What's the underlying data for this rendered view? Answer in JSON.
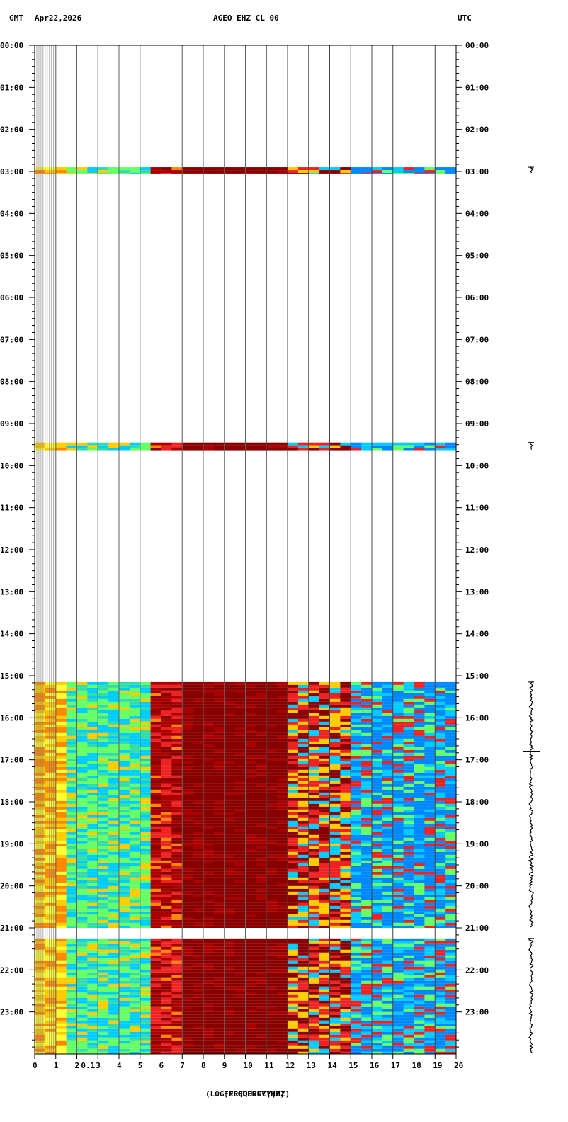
{
  "header": {
    "left_tz": "GMT",
    "date": "Apr22,2026",
    "station": "AGEO EHZ CL 00",
    "right_tz": "UTC"
  },
  "chart_data": {
    "type": "heatmap",
    "title": "AGEO EHZ CL 00",
    "xlabel": "(LOG)FREQUENCY(HZ)",
    "xlabel_overlap": "FREQUENCY(HZ)",
    "x_tick_labels": [
      "0",
      "1",
      "2",
      "0.1",
      "3",
      "4",
      "5",
      "6",
      "7",
      "8",
      "9",
      "10",
      "11",
      "12",
      "13",
      "14",
      "15",
      "16",
      "17",
      "18",
      "19",
      "20"
    ],
    "x_major_ticks": [
      0,
      1,
      2,
      3,
      4,
      5,
      6,
      7,
      8,
      9,
      10,
      11,
      12,
      13,
      14,
      15,
      16,
      17,
      18,
      19,
      20
    ],
    "x_log_gridlines": [
      0.1,
      0.2,
      0.3,
      0.4,
      0.5,
      0.6,
      0.7,
      0.8,
      0.9,
      1,
      2,
      3,
      4,
      5,
      6,
      7,
      8,
      9,
      10,
      20
    ],
    "xlim": [
      0,
      20
    ],
    "y_hours": [
      "00:00",
      "01:00",
      "02:00",
      "03:00",
      "04:00",
      "05:00",
      "06:00",
      "07:00",
      "08:00",
      "09:00",
      "10:00",
      "11:00",
      "12:00",
      "13:00",
      "14:00",
      "15:00",
      "16:00",
      "17:00",
      "18:00",
      "19:00",
      "20:00",
      "21:00",
      "22:00",
      "23:00"
    ],
    "ylim": [
      0,
      24
    ],
    "data_segments": [
      {
        "start": 2.9,
        "end": 3.05
      },
      {
        "start": 9.45,
        "end": 9.65
      },
      {
        "start": 15.15,
        "end": 21.0
      },
      {
        "start": 21.25,
        "end": 24.0
      }
    ],
    "events": [
      {
        "time": 16.8,
        "amplitude": "large"
      }
    ],
    "colormap": [
      "#ffff33",
      "#ffcc00",
      "#ff8800",
      "#ee2222",
      "#aa0000",
      "#880000",
      "#66ff66",
      "#33ddaa",
      "#00ccff",
      "#0088ff",
      "#0033dd"
    ]
  }
}
